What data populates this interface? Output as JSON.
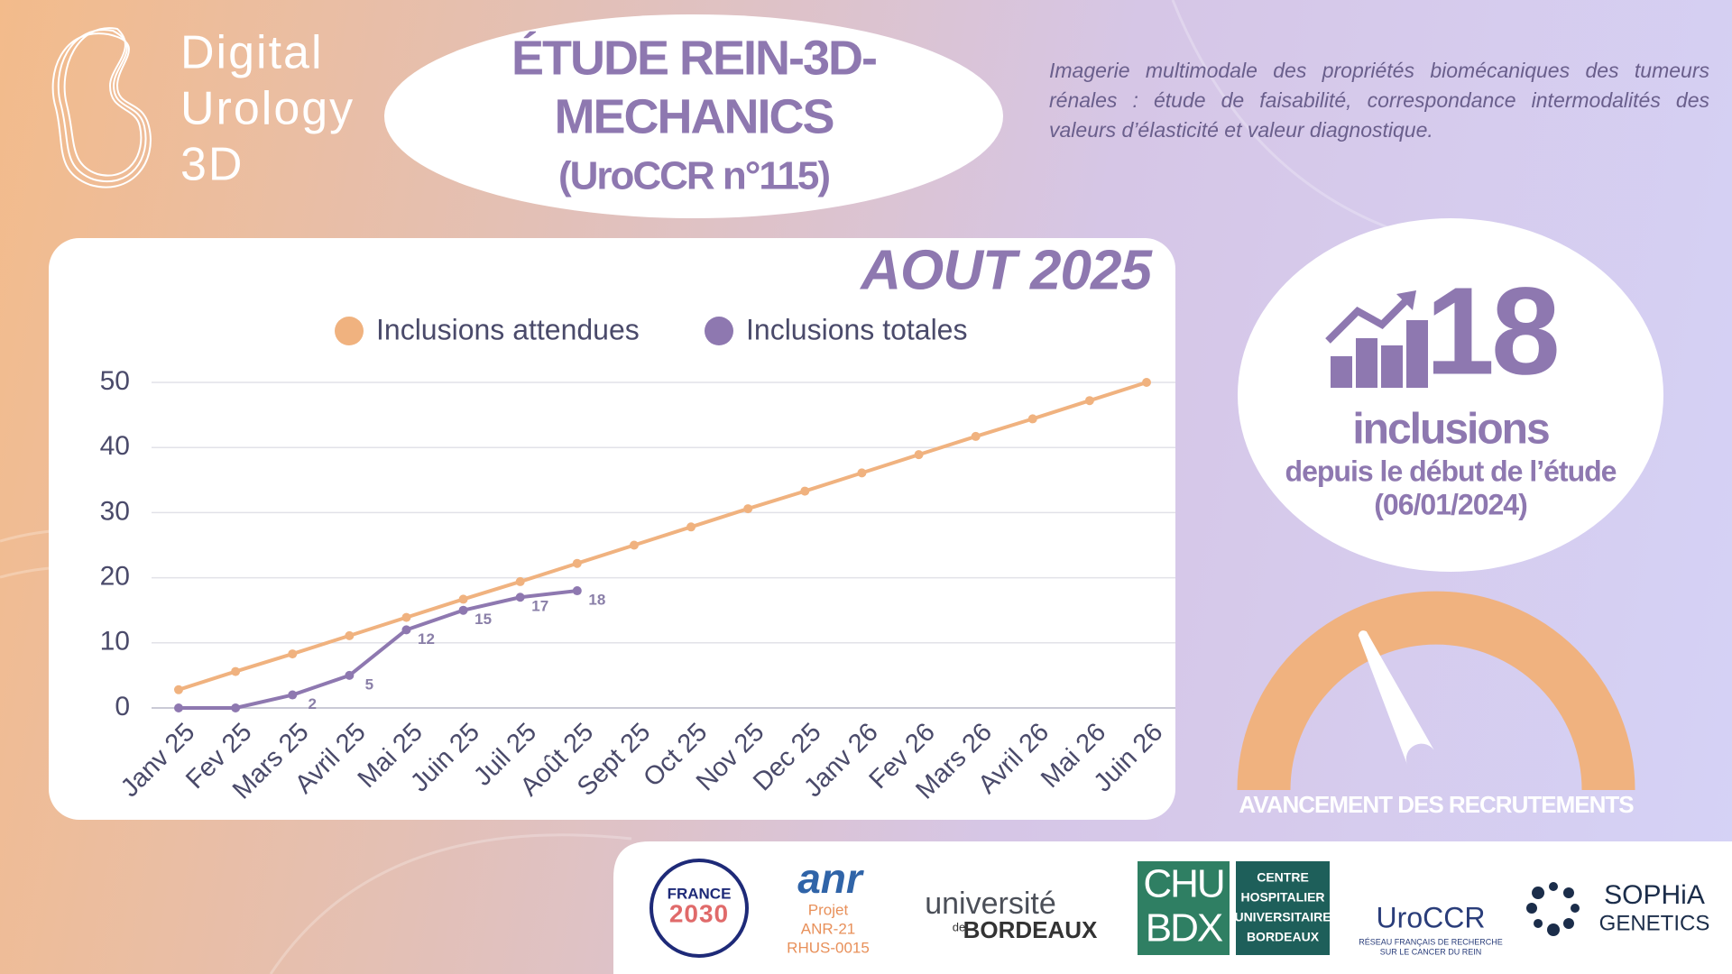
{
  "header": {
    "logo": [
      "Digital",
      "Urology",
      "3D"
    ],
    "title_lines": [
      "ÉTUDE REIN-3D-",
      "MECHANICS",
      "(UroCCR n°115)"
    ],
    "description": "Imagerie multimodale des propriétés biomécaniques des tumeurs rénales : étude de faisabilité, correspondance intermodalités des valeurs d’élasticité et valeur diagnostique."
  },
  "chart_data": {
    "type": "line",
    "title": "AOUT 2025",
    "categories": [
      "Janv 25",
      "Fev 25",
      "Mars 25",
      "Avril 25",
      "Mai 25",
      "Juin 25",
      "Juil 25",
      "Août 25",
      "Sept 25",
      "Oct 25",
      "Nov 25",
      "Dec 25",
      "Janv 26",
      "Fev 26",
      "Mars 26",
      "Avril 26",
      "Mai 26",
      "Juin 26"
    ],
    "series": [
      {
        "name": "Inclusions attendues",
        "color": "#f0b27f",
        "values": [
          2.8,
          5.6,
          8.3,
          11.1,
          13.9,
          16.7,
          19.4,
          22.2,
          25,
          27.8,
          30.6,
          33.3,
          36.1,
          38.9,
          41.7,
          44.4,
          47.2,
          50
        ]
      },
      {
        "name": "Inclusions totales",
        "color": "#8e78b0",
        "values": [
          0,
          0,
          2,
          5,
          12,
          15,
          17,
          18,
          null,
          null,
          null,
          null,
          null,
          null,
          null,
          null,
          null,
          null
        ],
        "value_labels": [
          null,
          null,
          "2",
          "5",
          "12",
          "15",
          "17",
          "18",
          null,
          null,
          null,
          null,
          null,
          null,
          null,
          null,
          null,
          null
        ]
      }
    ],
    "ylim": [
      0,
      50
    ],
    "yticks": [
      0,
      10,
      20,
      30,
      40,
      50
    ],
    "grid": true,
    "legend": "top"
  },
  "kpi": {
    "value": 18,
    "label": "inclusions",
    "sub": "depuis le début de l’étude",
    "date": "(06/01/2024)"
  },
  "gauge": {
    "label": "AVANCEMENT DES RECRUTEMENTS",
    "color": "#f0b27f"
  },
  "partners": {
    "france2030": [
      "FRANCE",
      "2030"
    ],
    "anr": [
      "anr",
      "Projet",
      "ANR-21",
      "RHUS-0015"
    ],
    "bordeaux": [
      "université",
      "de",
      "BORDEAUX"
    ],
    "chu": [
      "CHU",
      "BDX",
      "CENTRE",
      "HOSPITALIER",
      "UNIVERSITAIRE",
      "BORDEAUX"
    ],
    "uroccr": [
      "UroCCR",
      "RÉSEAU FRANÇAIS DE RECHERCHE",
      "SUR LE CANCER DU REIN"
    ],
    "sophia": [
      "SOPHiA",
      "GENETICS"
    ]
  }
}
